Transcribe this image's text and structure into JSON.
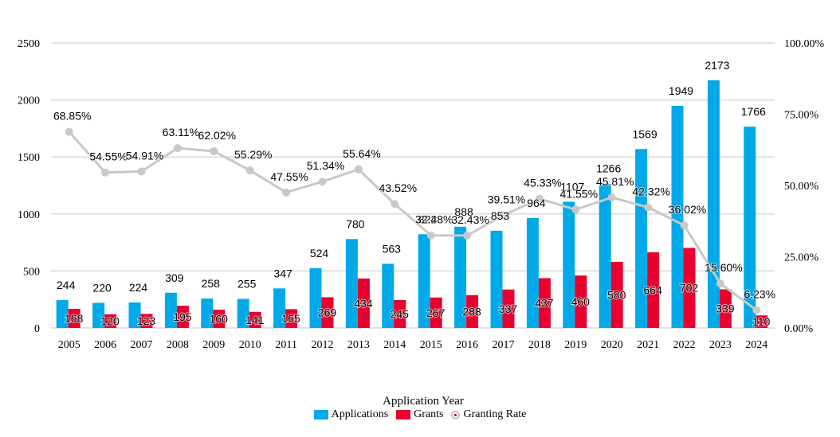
{
  "chart_data": {
    "type": "bar",
    "categories": [
      "2005",
      "2006",
      "2007",
      "2008",
      "2009",
      "2010",
      "2011",
      "2012",
      "2013",
      "2014",
      "2015",
      "2016",
      "2017",
      "2018",
      "2019",
      "2020",
      "2021",
      "2022",
      "2023",
      "2024"
    ],
    "series": [
      {
        "name": "Applications",
        "type": "bar",
        "axis": "left",
        "color": "#00a9e8",
        "values": [
          244,
          220,
          224,
          309,
          258,
          255,
          347,
          524,
          780,
          563,
          822,
          888,
          853,
          964,
          1107,
          1266,
          1569,
          1949,
          2173,
          1766
        ]
      },
      {
        "name": "Grants",
        "type": "bar",
        "axis": "left",
        "color": "#e8002e",
        "values": [
          168,
          120,
          123,
          195,
          160,
          141,
          165,
          269,
          434,
          245,
          267,
          288,
          337,
          437,
          460,
          580,
          664,
          702,
          339,
          110
        ]
      },
      {
        "name": "Granting Rate",
        "type": "line",
        "axis": "right",
        "color": "#c8c8c8",
        "values": [
          68.85,
          54.55,
          54.91,
          63.11,
          62.02,
          55.29,
          47.55,
          51.34,
          55.64,
          43.52,
          32.48,
          32.43,
          39.51,
          45.33,
          41.55,
          45.81,
          42.32,
          36.02,
          15.6,
          6.23
        ],
        "labels": [
          "68.85%",
          "54.55%",
          "54.91%",
          "63.11%",
          "62.02%",
          "55.29%",
          "47.55%",
          "51.34%",
          "55.64%",
          "43.52%",
          "32.48%",
          "32.43%",
          "39.51%",
          "45.33%",
          "41.55%",
          "45.81%",
          "42.32%",
          "36.02%",
          "15.60%",
          "6.23%"
        ]
      }
    ],
    "xlabel": "Application Year",
    "ylim": [
      0,
      2500
    ],
    "yticks": [
      "0",
      "500",
      "1000",
      "1500",
      "2000",
      "2500"
    ],
    "y2lim": [
      0,
      100
    ],
    "y2ticks": [
      "0.00%",
      "25.00%",
      "50.00%",
      "75.00%",
      "100.00%"
    ],
    "grid": true,
    "legend_position": "bottom"
  },
  "legend": {
    "applications": "Applications",
    "grants": "Grants",
    "rate": "Granting Rate"
  }
}
